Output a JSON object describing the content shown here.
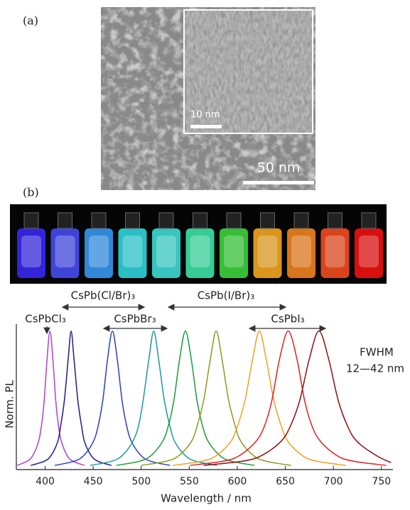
{
  "panel_labels": [
    "(a)",
    "(b)"
  ],
  "tem": {
    "inset_scale": "10 nm",
    "main_scale": "50 nm"
  },
  "chart_data": {
    "type": "line",
    "xlabel": "Wavelength / nm",
    "ylabel": "Norm. PL",
    "xlim": [
      370,
      762
    ],
    "xticks": [
      400,
      450,
      500,
      550,
      600,
      650,
      700,
      750
    ],
    "ylim": [
      0,
      1.05
    ],
    "annotations": [
      "CsPb(Cl/Br)₃",
      "CsPbCl₃",
      "CsPbBr₃",
      "CsPb(I/Br)₃",
      "CsPbI₃",
      "FWHM",
      "12—42 nm"
    ],
    "series": [
      {
        "color": "#b040d0",
        "x": [
          371,
          381,
          387,
          393,
          396,
          399,
          402,
          405,
          408,
          411,
          414,
          417,
          423,
          429,
          441
        ],
        "values": [
          0.03,
          0.06,
          0.1,
          0.2,
          0.31,
          0.5,
          0.8,
          1,
          0.8,
          0.5,
          0.31,
          0.2,
          0.1,
          0.06,
          0.03
        ]
      },
      {
        "color": "#1c1c8c",
        "x": [
          385,
          399,
          406,
          413,
          416,
          420,
          424,
          427,
          430,
          434,
          438,
          441,
          448,
          455,
          469
        ],
        "values": [
          0.03,
          0.06,
          0.1,
          0.2,
          0.31,
          0.5,
          0.8,
          1,
          0.8,
          0.5,
          0.31,
          0.2,
          0.1,
          0.06,
          0.03
        ]
      },
      {
        "color": "#2a3fc0",
        "x": [
          410,
          430,
          440,
          450,
          455,
          460,
          465,
          470,
          475,
          480,
          485,
          490,
          500,
          510,
          530
        ],
        "values": [
          0.03,
          0.06,
          0.1,
          0.2,
          0.31,
          0.5,
          0.8,
          1,
          0.8,
          0.5,
          0.31,
          0.2,
          0.1,
          0.06,
          0.03
        ]
      },
      {
        "color": "#1a9a9a",
        "x": [
          447,
          469,
          480,
          491,
          497,
          502,
          508,
          513,
          518,
          524,
          530,
          535,
          546,
          557,
          579
        ],
        "values": [
          0.03,
          0.06,
          0.1,
          0.2,
          0.31,
          0.5,
          0.8,
          1,
          0.8,
          0.5,
          0.31,
          0.2,
          0.1,
          0.06,
          0.03
        ]
      },
      {
        "color": "#1a9a3a",
        "x": [
          474,
          498,
          510,
          522,
          528,
          534,
          540,
          546,
          552,
          558,
          564,
          570,
          582,
          594,
          618
        ],
        "values": [
          0.03,
          0.06,
          0.1,
          0.2,
          0.31,
          0.5,
          0.8,
          1,
          0.8,
          0.5,
          0.31,
          0.2,
          0.1,
          0.06,
          0.03
        ]
      },
      {
        "color": "#8a9a20",
        "x": [
          500,
          526,
          539,
          552,
          558,
          565,
          572,
          578,
          584,
          591,
          598,
          604,
          617,
          630,
          656
        ],
        "values": [
          0.03,
          0.06,
          0.1,
          0.2,
          0.31,
          0.5,
          0.8,
          1,
          0.8,
          0.5,
          0.31,
          0.2,
          0.1,
          0.06,
          0.03
        ]
      },
      {
        "color": "#f0a020",
        "x": [
          533,
          563,
          578,
          593,
          600,
          608,
          616,
          623,
          630,
          638,
          646,
          653,
          668,
          683,
          713
        ],
        "values": [
          0.03,
          0.06,
          0.1,
          0.2,
          0.31,
          0.5,
          0.8,
          1,
          0.8,
          0.5,
          0.31,
          0.2,
          0.1,
          0.06,
          0.03
        ]
      },
      {
        "color": "#e02020",
        "x": [
          551,
          585,
          602,
          619,
          628,
          636,
          644,
          653,
          662,
          670,
          678,
          687,
          704,
          721,
          755
        ],
        "values": [
          0.03,
          0.06,
          0.1,
          0.2,
          0.31,
          0.5,
          0.8,
          1,
          0.8,
          0.5,
          0.31,
          0.2,
          0.1,
          0.06,
          0.03
        ]
      },
      {
        "color": "#901010",
        "x": [
          565,
          605,
          625,
          645,
          655,
          665,
          675,
          685,
          695,
          705,
          715,
          725,
          745,
          760
        ],
        "values": [
          0.03,
          0.06,
          0.1,
          0.2,
          0.31,
          0.5,
          0.8,
          1,
          0.8,
          0.5,
          0.31,
          0.2,
          0.1,
          0.05
        ]
      }
    ]
  }
}
